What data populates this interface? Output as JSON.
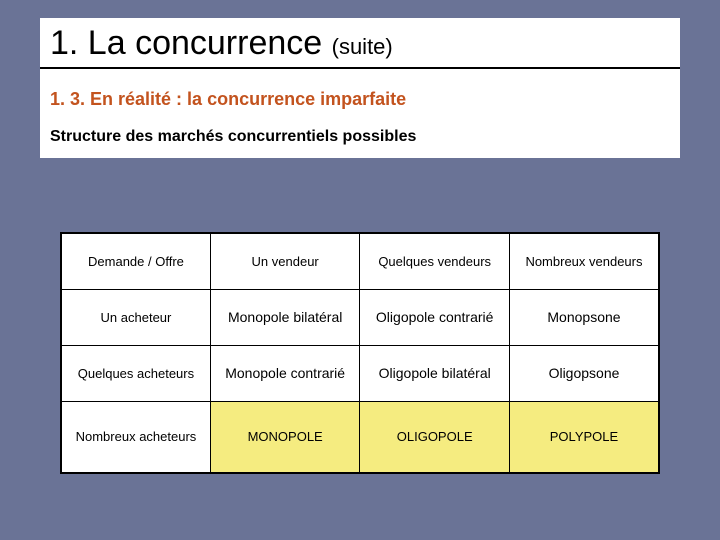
{
  "title_main": "1. La concurrence ",
  "title_suite": "(suite)",
  "subtitle": "1. 3. En réalité : la concurrence imparfaite",
  "subhead": "Structure des marchés concurrentiels possibles",
  "table": {
    "header": [
      "Demande / Offre",
      "Un vendeur",
      "Quelques vendeurs",
      "Nombreux vendeurs"
    ],
    "rows": [
      {
        "head": "Un acheteur",
        "cells": [
          "Monopole bilatéral",
          "Oligopole contrarié",
          "Monopsone"
        ]
      },
      {
        "head": "Quelques acheteurs",
        "cells": [
          "Monopole contrarié",
          "Oligopole bilatéral",
          "Oligopsone"
        ]
      },
      {
        "head": "Nombreux acheteurs",
        "cells": [
          "MONOPOLE",
          "OLIGOPOLE",
          "POLYPOLE"
        ]
      }
    ]
  },
  "colors": {
    "background": "#6a7396",
    "accent": "#c3531e",
    "highlight_bg": "#f5ec80",
    "monopole": "#c3531e",
    "oligopole": "#3a7a3a",
    "polypole": "#2a4aa0"
  }
}
